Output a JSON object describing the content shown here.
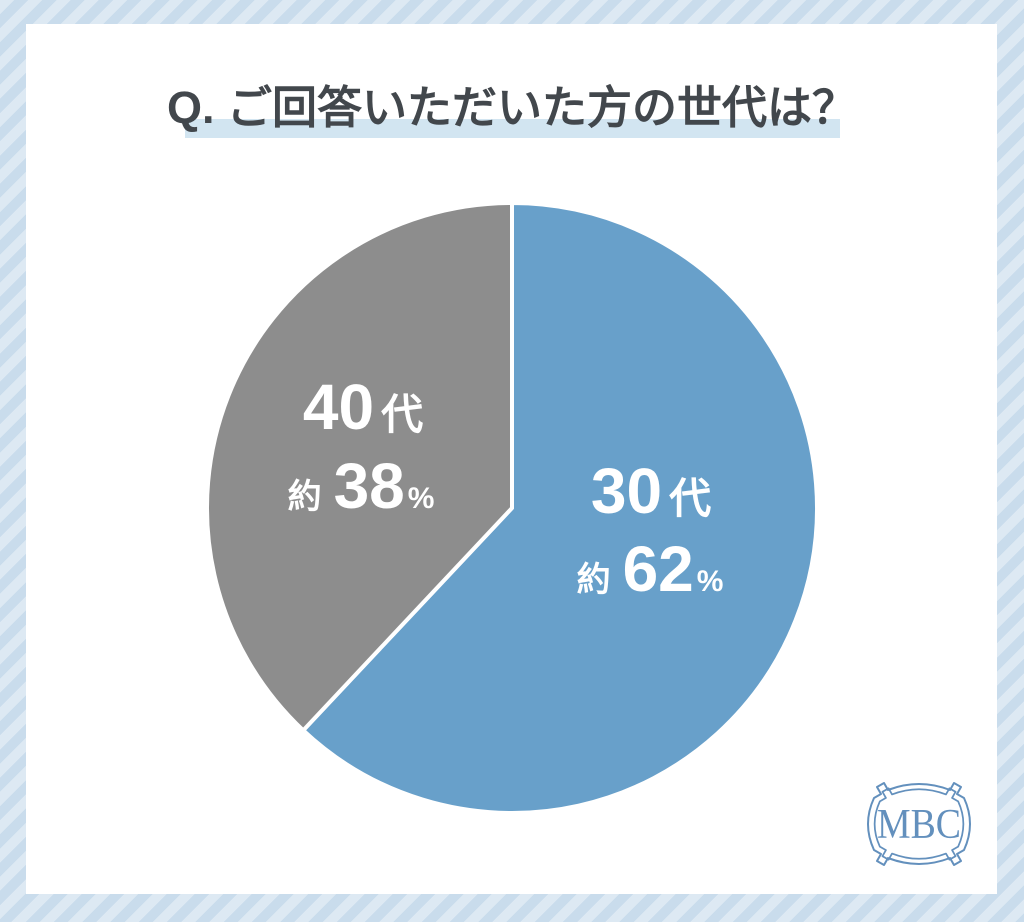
{
  "header": {
    "title": "Q. ご回答いただいた方の世代は？",
    "text_color": "#42474c",
    "highlight_color": "#d2e5f1"
  },
  "chart_data": {
    "type": "pie",
    "title": "Q. ご回答いただいた方の世代は？",
    "start_angle_deg": -90,
    "direction": "clockwise",
    "divider_color": "#ffffff",
    "slices": [
      {
        "id": "30s",
        "name": "30代",
        "name_number": "30",
        "name_suffix": "代",
        "approx_label": "約",
        "value": 62,
        "value_text": "62",
        "unit": "%",
        "color": "#68a0ca",
        "label_text_color": "#ffffff"
      },
      {
        "id": "40s",
        "name": "40代",
        "name_number": "40",
        "name_suffix": "代",
        "approx_label": "約",
        "value": 38,
        "value_text": "38",
        "unit": "%",
        "color": "#8d8d8d",
        "label_text_color": "#ffffff"
      }
    ]
  },
  "logo": {
    "text": "MBC",
    "color": "#6390bd"
  },
  "background": {
    "stripe_light": "#dde9f3",
    "stripe_dark": "#c9dcec",
    "panel_color": "#ffffff"
  }
}
